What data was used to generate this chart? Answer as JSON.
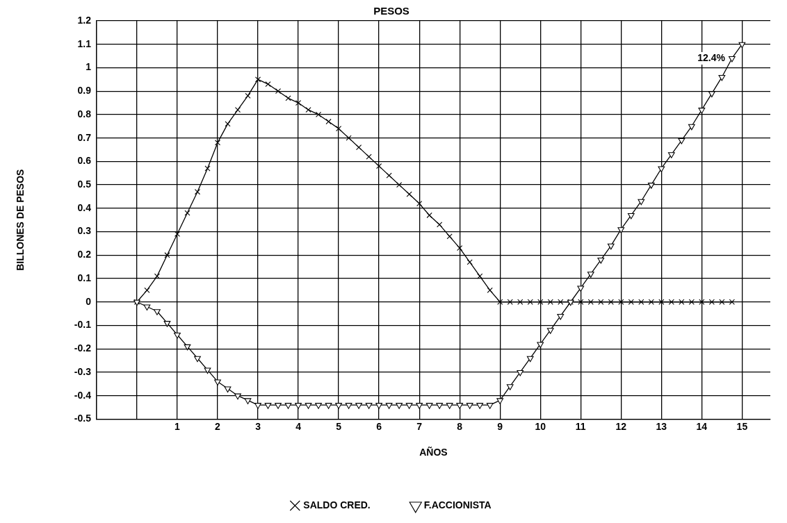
{
  "chart_data": {
    "type": "line",
    "title": "PESOS",
    "xlabel": "AÑOS",
    "ylabel": "BILLONES DE PESOS",
    "x": [
      0,
      0.25,
      0.5,
      0.75,
      1,
      1.25,
      1.5,
      1.75,
      2,
      2.25,
      2.5,
      2.75,
      3,
      3.25,
      3.5,
      3.75,
      4,
      4.25,
      4.5,
      4.75,
      5,
      5.25,
      5.5,
      5.75,
      6,
      6.25,
      6.5,
      6.75,
      7,
      7.25,
      7.5,
      7.75,
      8,
      8.25,
      8.5,
      8.75,
      9,
      9.25,
      9.5,
      9.75,
      10,
      10.25,
      10.5,
      10.75,
      11,
      11.25,
      11.5,
      11.75,
      12,
      12.25,
      12.5,
      12.75,
      13,
      13.25,
      13.5,
      13.75,
      14,
      14.25,
      14.5,
      14.75,
      15
    ],
    "series": [
      {
        "name": "SALDO CRED.",
        "color": "#000000",
        "marker": "cross",
        "values": [
          0,
          0.05,
          0.11,
          0.2,
          0.29,
          0.38,
          0.47,
          0.57,
          0.68,
          0.76,
          0.82,
          0.88,
          0.95,
          0.93,
          0.9,
          0.87,
          0.85,
          0.82,
          0.8,
          0.77,
          0.74,
          0.7,
          0.66,
          0.62,
          0.58,
          0.54,
          0.5,
          0.46,
          0.42,
          0.37,
          0.33,
          0.28,
          0.23,
          0.17,
          0.11,
          0.05,
          0,
          0,
          0,
          0,
          0,
          0,
          0,
          0,
          0,
          0,
          0,
          0,
          0,
          0,
          0,
          0,
          0,
          0,
          0,
          0,
          0,
          0,
          0,
          0,
          null
        ]
      },
      {
        "name": "F.ACCIONISTA",
        "color": "#000000",
        "marker": "triangle",
        "values": [
          0,
          -0.02,
          -0.04,
          -0.09,
          -0.14,
          -0.19,
          -0.24,
          -0.29,
          -0.34,
          -0.37,
          -0.4,
          -0.42,
          -0.44,
          -0.44,
          -0.44,
          -0.44,
          -0.44,
          -0.44,
          -0.44,
          -0.44,
          -0.44,
          -0.44,
          -0.44,
          -0.44,
          -0.44,
          -0.44,
          -0.44,
          -0.44,
          -0.44,
          -0.44,
          -0.44,
          -0.44,
          -0.44,
          -0.44,
          -0.44,
          -0.44,
          -0.42,
          -0.36,
          -0.3,
          -0.24,
          -0.18,
          -0.12,
          -0.06,
          0,
          0.06,
          0.12,
          0.18,
          0.24,
          0.31,
          0.37,
          0.43,
          0.5,
          0.57,
          0.63,
          0.69,
          0.75,
          0.82,
          0.89,
          0.96,
          1.04,
          1.1
        ]
      }
    ],
    "xlim": [
      -1,
      15.7
    ],
    "xticks": [
      {
        "value": -1,
        "label": null
      },
      {
        "value": 0,
        "label": null
      },
      1,
      2,
      3,
      4,
      5,
      6,
      7,
      8,
      9,
      10,
      11,
      12,
      13,
      14,
      15
    ],
    "ylim": [
      -0.5,
      1.2
    ],
    "yticks": [
      -0.5,
      -0.4,
      -0.3,
      -0.2,
      -0.1,
      0,
      0.1,
      0.2,
      0.3,
      0.4,
      0.5,
      0.6,
      0.7,
      0.8,
      0.9,
      1,
      1.1,
      1.2
    ],
    "grid": true,
    "legend": "bottom",
    "line_style": "solid",
    "annotations": [
      {
        "text": "12.4%",
        "x": 14.75,
        "y": 1.04
      }
    ]
  }
}
